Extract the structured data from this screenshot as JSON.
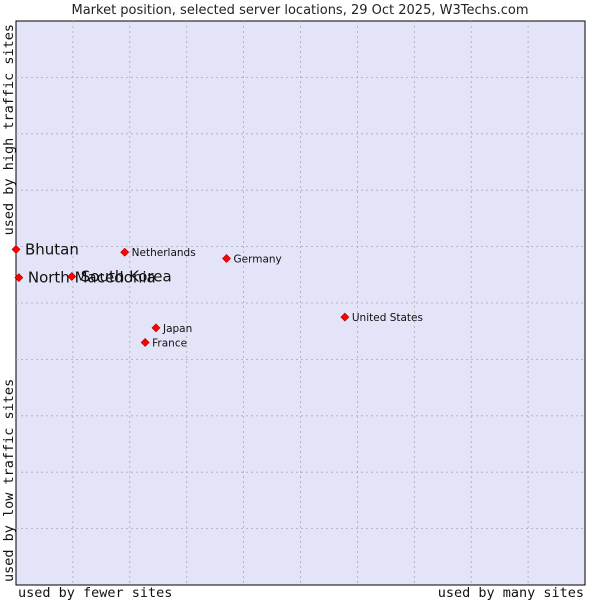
{
  "chart_data": {
    "type": "scatter",
    "title": "Market position, selected server locations, 29 Oct 2025, W3Techs.com",
    "xlabel_left": "used by fewer sites",
    "xlabel_right": "used by many sites",
    "ylabel_bottom": "used by low traffic sites",
    "ylabel_top": "used by high traffic sites",
    "grid": true,
    "colors": {
      "background": "#e4e4f8",
      "grid": "#aaaaaa",
      "point": "#ff0000",
      "frame": "#000000"
    },
    "points": [
      {
        "label": "Bhutan",
        "x": 0.0,
        "y": 0.595,
        "emphasis": true
      },
      {
        "label": "North Macedonia",
        "x": 0.005,
        "y": 0.545,
        "emphasis": true
      },
      {
        "label": "South Korea",
        "x": 0.098,
        "y": 0.547,
        "emphasis": true
      },
      {
        "label": "Netherlands",
        "x": 0.191,
        "y": 0.59,
        "emphasis": false
      },
      {
        "label": "Germany",
        "x": 0.37,
        "y": 0.579,
        "emphasis": false
      },
      {
        "label": "United States",
        "x": 0.578,
        "y": 0.475,
        "emphasis": false
      },
      {
        "label": "Japan",
        "x": 0.246,
        "y": 0.456,
        "emphasis": false
      },
      {
        "label": "France",
        "x": 0.227,
        "y": 0.43,
        "emphasis": false
      }
    ]
  }
}
